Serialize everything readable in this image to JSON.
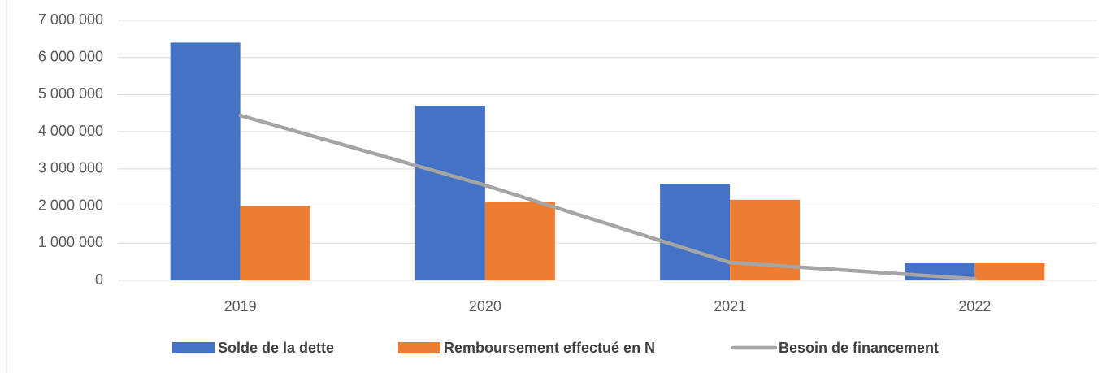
{
  "chart_data": {
    "type": "bar_line",
    "categories": [
      "2019",
      "2020",
      "2021",
      "2022"
    ],
    "series": [
      {
        "name": "Solde de la dette",
        "color": "#4472c4",
        "type": "bar",
        "values": [
          6400000,
          4700000,
          2600000,
          460000
        ]
      },
      {
        "name": "Remboursement effectué en N",
        "color": "#ed7d31",
        "type": "bar",
        "values": [
          2000000,
          2120000,
          2170000,
          460000
        ]
      },
      {
        "name": "Besoin de financement",
        "color": "#a5a5a5",
        "type": "line",
        "values": [
          4440000,
          2560000,
          480000,
          40000
        ]
      }
    ],
    "ylim": [
      0,
      7000000
    ],
    "yticks": [
      0,
      {
        "value": 1000000,
        "label": "1 000 000"
      },
      {
        "value": 2000000,
        "label": "2 000 000"
      },
      {
        "value": 3000000,
        "label": "3 000 000"
      },
      {
        "value": 4000000,
        "label": "4 000 000"
      },
      {
        "value": 5000000,
        "label": "5 000 000"
      },
      {
        "value": 6000000,
        "label": "6 000 000"
      },
      {
        "value": 7000000,
        "label": "7 000 000"
      }
    ],
    "grid": true,
    "legend": "bottom"
  }
}
